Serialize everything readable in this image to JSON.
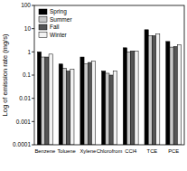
{
  "chart_data": {
    "type": "bar",
    "y_label": "Log of emission rate (mg/s)",
    "categories": [
      "Benzene",
      "Toluene",
      "Xylene",
      "Chlorofrom",
      "CCl4",
      "TCE",
      "PCE"
    ],
    "series": [
      {
        "name": "Spring",
        "color": "#000000",
        "values": [
          1.0,
          0.3,
          0.6,
          0.15,
          1.5,
          9,
          2.8
        ]
      },
      {
        "name": "Summer",
        "color": "#c8c8c8",
        "values": [
          0.6,
          0.2,
          0.3,
          0.12,
          1.0,
          5,
          1.6
        ]
      },
      {
        "name": "Fall",
        "color": "#555555",
        "values": [
          0.6,
          0.15,
          0.35,
          0.1,
          1.1,
          5,
          1.7
        ]
      },
      {
        "name": "Winter",
        "color": "#f2f2f2",
        "values": [
          0.8,
          0.18,
          0.4,
          0.15,
          1.1,
          6,
          2.0
        ]
      }
    ],
    "ylim": [
      0.0001,
      100
    ],
    "yticks": [
      0.0001,
      0.001,
      0.01,
      0.1,
      1,
      10,
      100
    ],
    "log": "y",
    "legend": "upper-left"
  }
}
